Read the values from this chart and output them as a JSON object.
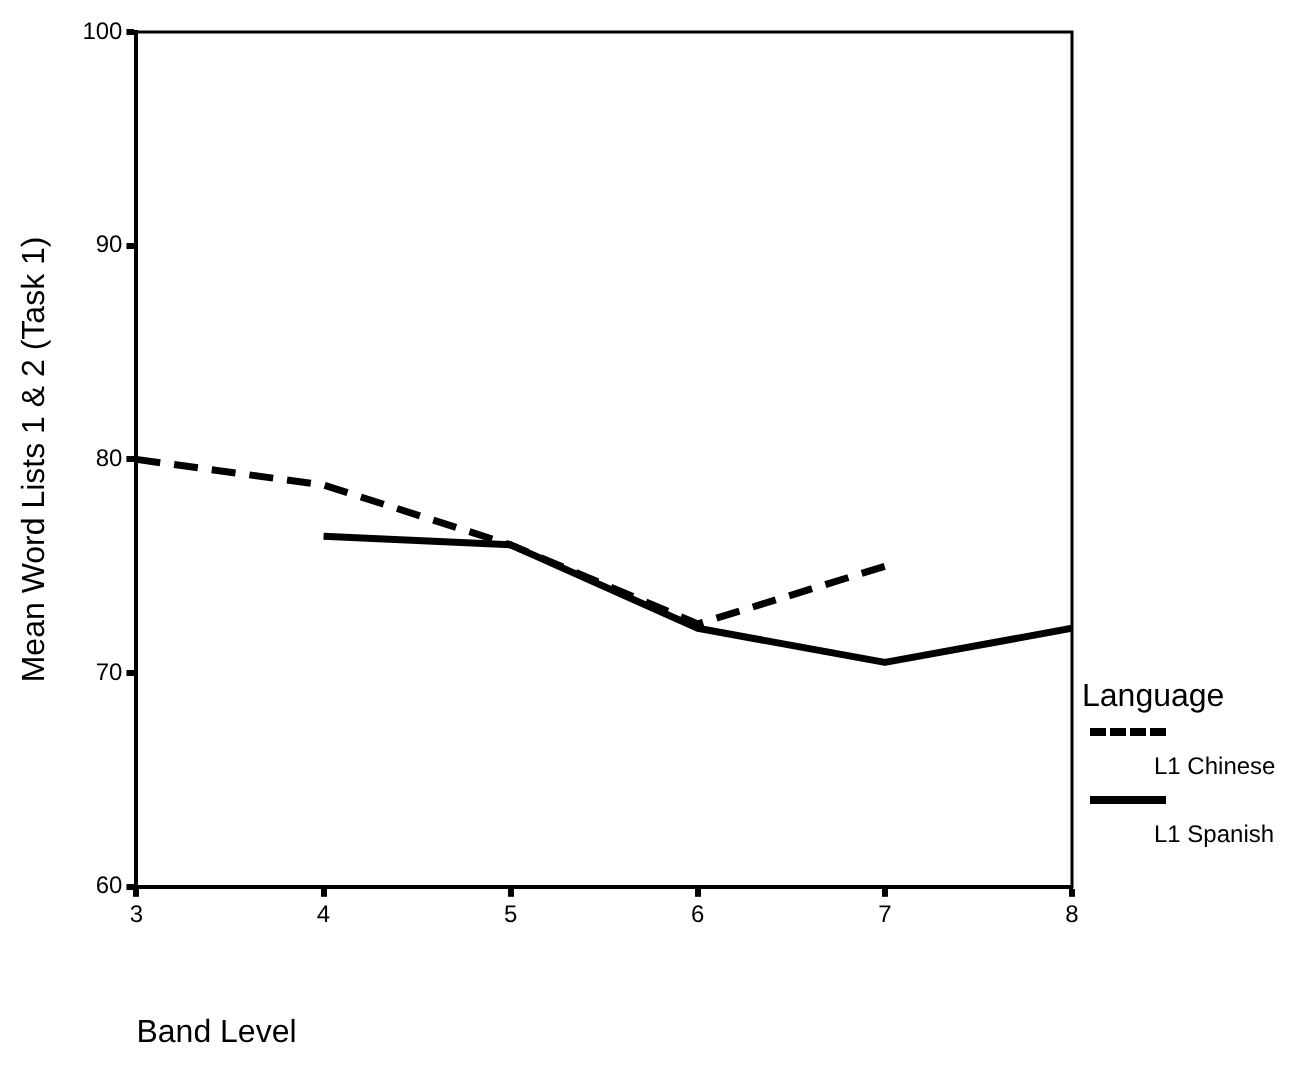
{
  "chart_data": {
    "type": "line",
    "xlabel": "Band Level",
    "ylabel": "Mean Word Lists 1 & 2 (Task 1)",
    "legend_title": "Language",
    "xlim": [
      3,
      8
    ],
    "xticks": [
      3,
      4,
      5,
      6,
      7,
      8
    ],
    "ylim": [
      60,
      100
    ],
    "yticks": [
      60,
      70,
      80,
      90,
      100
    ],
    "grid": false,
    "legend": "right",
    "marker": "none",
    "series": [
      {
        "name": "L1 Chinese",
        "color": "#000000",
        "line_style": "dashed",
        "x": [
          3,
          4,
          5,
          6,
          7
        ],
        "values": [
          80.0,
          78.8,
          76.0,
          72.3,
          75.0
        ]
      },
      {
        "name": "L1 Spanish",
        "color": "#000000",
        "line_style": "solid",
        "x": [
          4,
          5,
          6,
          7,
          8
        ],
        "values": [
          76.4,
          76.0,
          72.1,
          70.5,
          72.1
        ]
      }
    ]
  }
}
